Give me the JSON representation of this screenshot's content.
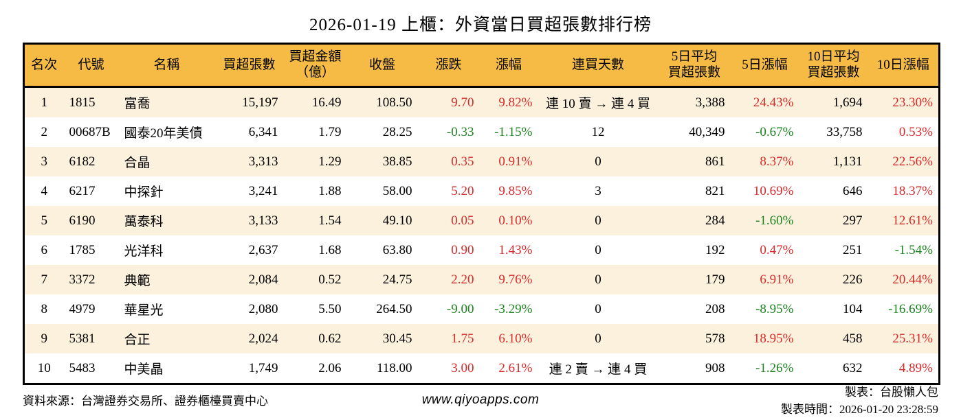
{
  "title": "2026-01-19 上櫃：外資當日買超張數排行榜",
  "colors": {
    "header_bg": "#F5BB45",
    "row_alt": "#FBF1DC",
    "up_red": "#D62B2B",
    "down_green": "#1E8420"
  },
  "chart_data": {
    "type": "table",
    "title": "2026-01-19 上櫃：外資當日買超張數排行榜",
    "columns": [
      "名次",
      "代號",
      "名稱",
      "買超張數",
      "買超金額\n（億）",
      "收盤",
      "漲跌",
      "漲幅",
      "連買天數",
      "5日平均\n買超張數",
      "5日漲幅",
      "10日平均\n買超張數",
      "10日漲幅"
    ],
    "column_keys": [
      "rank",
      "code",
      "name",
      "net-buy-volume",
      "net-buy-amount",
      "close",
      "change",
      "change-pct",
      "streak-days",
      "avg5-volume",
      "pct5",
      "avg10-volume",
      "pct10"
    ],
    "rows": [
      [
        "1",
        "1815",
        "富喬",
        "15,197",
        "16.49",
        "108.50",
        "9.70",
        "9.82%",
        "連 10 賣 → 連 4 買",
        "3,388",
        "24.43%",
        "1,694",
        "23.30%"
      ],
      [
        "2",
        "00687B",
        "國泰20年美債",
        "6,341",
        "1.79",
        "28.25",
        "-0.33",
        "-1.15%",
        "12",
        "40,349",
        "-0.67%",
        "33,758",
        "0.53%"
      ],
      [
        "3",
        "6182",
        "合晶",
        "3,313",
        "1.29",
        "38.85",
        "0.35",
        "0.91%",
        "0",
        "861",
        "8.37%",
        "1,131",
        "22.56%"
      ],
      [
        "4",
        "6217",
        "中探針",
        "3,241",
        "1.88",
        "58.00",
        "5.20",
        "9.85%",
        "3",
        "821",
        "10.69%",
        "646",
        "18.37%"
      ],
      [
        "5",
        "6190",
        "萬泰科",
        "3,133",
        "1.54",
        "49.10",
        "0.05",
        "0.10%",
        "0",
        "284",
        "-1.60%",
        "297",
        "12.61%"
      ],
      [
        "6",
        "1785",
        "光洋科",
        "2,637",
        "1.68",
        "63.80",
        "0.90",
        "1.43%",
        "0",
        "192",
        "0.47%",
        "251",
        "-1.54%"
      ],
      [
        "7",
        "3372",
        "典範",
        "2,084",
        "0.52",
        "24.75",
        "2.20",
        "9.76%",
        "0",
        "179",
        "6.91%",
        "226",
        "20.44%"
      ],
      [
        "8",
        "4979",
        "華星光",
        "2,080",
        "5.50",
        "264.50",
        "-9.00",
        "-3.29%",
        "0",
        "208",
        "-8.95%",
        "104",
        "-16.69%"
      ],
      [
        "9",
        "5381",
        "合正",
        "2,024",
        "0.62",
        "30.45",
        "1.75",
        "6.10%",
        "0",
        "578",
        "18.95%",
        "458",
        "25.31%"
      ],
      [
        "10",
        "5483",
        "中美晶",
        "1,749",
        "2.06",
        "118.00",
        "3.00",
        "2.61%",
        "連 2 賣 → 連 4 買",
        "908",
        "-1.26%",
        "632",
        "4.89%"
      ]
    ]
  },
  "footer": {
    "source": "資料來源：台灣證券交易所、證券櫃檯買賣中心",
    "website": "www.qiyoapps.com",
    "maker": "製表：台股懶人包",
    "made_time": "製表時間：2026-01-20 23:28:59"
  }
}
